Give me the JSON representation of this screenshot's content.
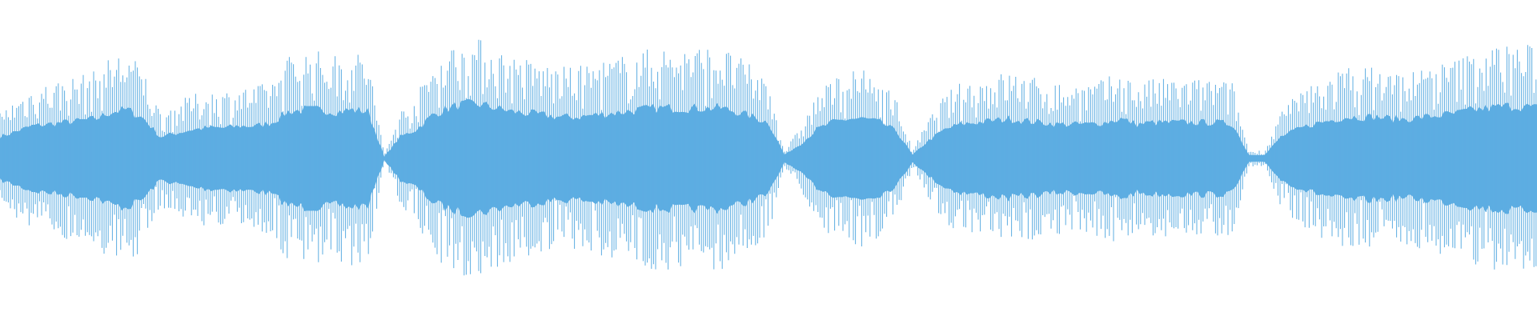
{
  "waveform": {
    "color": "#5dade2",
    "background": "#ffffff",
    "peak_envelope": [
      0.3,
      0.375,
      0.45,
      0.475,
      0.5,
      0.525,
      0.55,
      0.65,
      0.675,
      0.55,
      0.3,
      0.35,
      0.4,
      0.425,
      0.425,
      0.45,
      0.45,
      0.5,
      0.65,
      0.675,
      0.675,
      0.65,
      0.675,
      0.65,
      0.025,
      0.3,
      0.4,
      0.6,
      0.7,
      0.75,
      0.75,
      0.7,
      0.65,
      0.625,
      0.6,
      0.575,
      0.575,
      0.6,
      0.625,
      0.65,
      0.675,
      0.7,
      0.7,
      0.7,
      0.7,
      0.7,
      0.65,
      0.575,
      0.5,
      0.05,
      0.2,
      0.4,
      0.5,
      0.55,
      0.55,
      0.5,
      0.375,
      0.05,
      0.25,
      0.4,
      0.475,
      0.5,
      0.525,
      0.55,
      0.525,
      0.5,
      0.475,
      0.475,
      0.475,
      0.5,
      0.55,
      0.475,
      0.5,
      0.5,
      0.5,
      0.5,
      0.5,
      0.475,
      0.05,
      0.05,
      0.3,
      0.4,
      0.475,
      0.525,
      0.575,
      0.575,
      0.575,
      0.55,
      0.55,
      0.575,
      0.6,
      0.625,
      0.675,
      0.7,
      0.725,
      0.725,
      0.7
    ],
    "body_ratio": 0.45
  }
}
